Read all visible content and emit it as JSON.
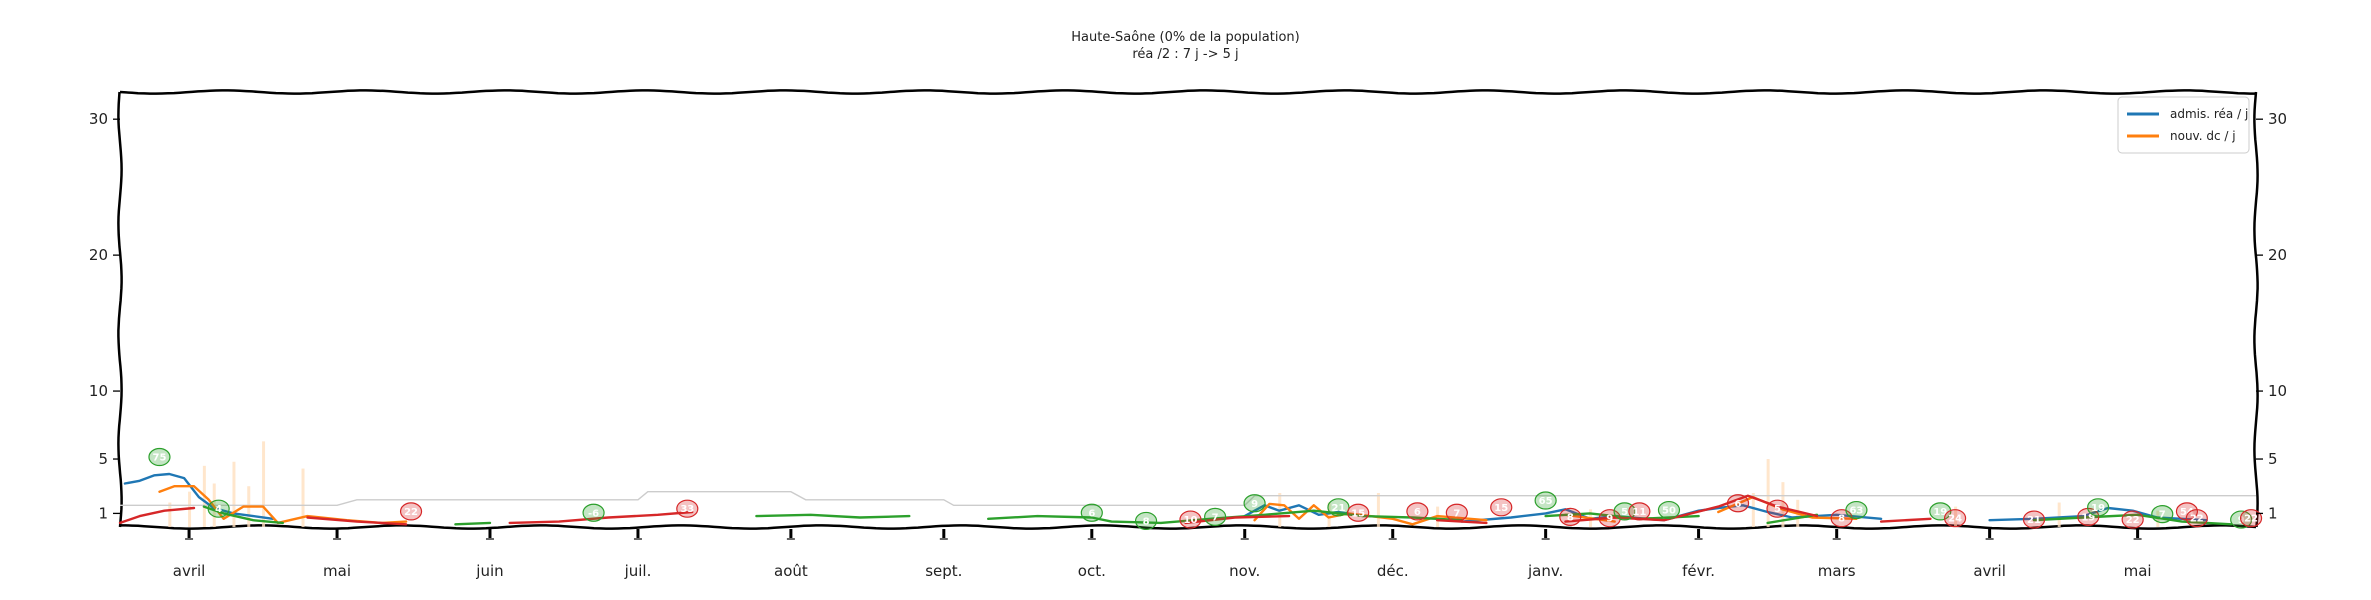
{
  "chart_data": {
    "type": "line",
    "title": "Haute-Saône (0% de la population)",
    "subtitle": "réa /2 : 7 j -> 5 j",
    "xlabel": "",
    "ylabel": "",
    "ylim": [
      0,
      32
    ],
    "y_ticks": [
      1,
      5,
      10,
      20,
      30
    ],
    "x_range": [
      "2020-03-18",
      "2021-05-25"
    ],
    "x_ticks": [
      {
        "date": "2020-04-01",
        "label": "avril"
      },
      {
        "date": "2020-05-01",
        "label": "mai"
      },
      {
        "date": "2020-06-01",
        "label": "juin"
      },
      {
        "date": "2020-07-01",
        "label": "juil."
      },
      {
        "date": "2020-08-01",
        "label": "août"
      },
      {
        "date": "2020-09-01",
        "label": "sept."
      },
      {
        "date": "2020-10-01",
        "label": "oct."
      },
      {
        "date": "2020-11-01",
        "label": "nov."
      },
      {
        "date": "2020-12-01",
        "label": "déc."
      },
      {
        "date": "2021-01-01",
        "label": "janv."
      },
      {
        "date": "2021-02-01",
        "label": "févr."
      },
      {
        "date": "2021-03-01",
        "label": "mars"
      },
      {
        "date": "2021-04-01",
        "label": "avril"
      },
      {
        "date": "2021-05-01",
        "label": "mai"
      }
    ],
    "legend": {
      "placement": "top-right"
    },
    "grid": false,
    "series": [
      {
        "name": "admis. réa / j",
        "color": "#1f77b4",
        "points": [
          [
            "2020-03-19",
            3.2
          ],
          [
            "2020-03-22",
            3.4
          ],
          [
            "2020-03-25",
            3.8
          ],
          [
            "2020-03-28",
            3.9
          ],
          [
            "2020-03-31",
            3.6
          ],
          [
            "2020-04-03",
            2.2
          ],
          [
            "2020-04-06",
            1.4
          ],
          [
            "2020-04-10",
            1.0
          ],
          [
            "2020-04-14",
            0.8
          ],
          [
            "2020-04-18",
            0.6
          ],
          [
            "2020-11-01",
            0.8
          ],
          [
            "2020-11-05",
            1.6
          ],
          [
            "2020-11-08",
            1.2
          ],
          [
            "2020-11-12",
            1.6
          ],
          [
            "2020-11-16",
            0.9
          ],
          [
            "2020-11-20",
            1.1
          ],
          [
            "2020-11-25",
            0.8
          ],
          [
            "2020-12-15",
            0.4
          ],
          [
            "2020-12-25",
            0.7
          ],
          [
            "2021-01-01",
            1.0
          ],
          [
            "2021-01-05",
            1.3
          ],
          [
            "2021-01-10",
            0.6
          ],
          [
            "2021-01-15",
            0.8
          ],
          [
            "2021-01-25",
            0.5
          ],
          [
            "2021-02-01",
            1.2
          ],
          [
            "2021-02-05",
            1.4
          ],
          [
            "2021-02-10",
            1.6
          ],
          [
            "2021-02-15",
            1.1
          ],
          [
            "2021-02-20",
            0.7
          ],
          [
            "2021-03-01",
            0.9
          ],
          [
            "2021-03-10",
            0.6
          ],
          [
            "2021-04-01",
            0.5
          ],
          [
            "2021-04-10",
            0.6
          ],
          [
            "2021-04-20",
            0.8
          ],
          [
            "2021-04-25",
            1.4
          ],
          [
            "2021-04-30",
            1.2
          ],
          [
            "2021-05-05",
            0.7
          ],
          [
            "2021-05-15",
            0.5
          ]
        ]
      },
      {
        "name": "nouv. dc / j",
        "color": "#ff7f0e",
        "points": [
          [
            "2020-03-26",
            2.6
          ],
          [
            "2020-03-29",
            3.0
          ],
          [
            "2020-04-02",
            3.0
          ],
          [
            "2020-04-05",
            2.0
          ],
          [
            "2020-04-08",
            0.6
          ],
          [
            "2020-04-12",
            1.5
          ],
          [
            "2020-04-16",
            1.5
          ],
          [
            "2020-04-19",
            0.3
          ],
          [
            "2020-04-25",
            0.8
          ],
          [
            "2020-05-03",
            0.5
          ],
          [
            "2020-05-10",
            0.3
          ],
          [
            "2020-05-15",
            0.4
          ],
          [
            "2020-11-03",
            0.5
          ],
          [
            "2020-11-06",
            1.7
          ],
          [
            "2020-11-09",
            1.6
          ],
          [
            "2020-11-12",
            0.6
          ],
          [
            "2020-11-15",
            1.6
          ],
          [
            "2020-11-18",
            0.7
          ],
          [
            "2020-11-22",
            1.0
          ],
          [
            "2020-12-01",
            0.6
          ],
          [
            "2020-12-05",
            0.2
          ],
          [
            "2020-12-10",
            0.8
          ],
          [
            "2020-12-20",
            0.5
          ],
          [
            "2021-01-05",
            0.9
          ],
          [
            "2021-01-15",
            0.4
          ],
          [
            "2021-02-05",
            1.1
          ],
          [
            "2021-02-12",
            2.2
          ],
          [
            "2021-02-18",
            1.3
          ],
          [
            "2021-02-24",
            0.7
          ],
          [
            "2021-03-05",
            0.6
          ],
          [
            "2021-03-20",
            0.8
          ],
          [
            "2021-04-05",
            0.5
          ],
          [
            "2021-04-25",
            0.7
          ],
          [
            "2021-05-10",
            0.5
          ]
        ]
      },
      {
        "color": "#2ca02c",
        "points": [
          [
            "2020-04-04",
            1.5
          ],
          [
            "2020-04-08",
            1.0
          ],
          [
            "2020-04-14",
            0.5
          ],
          [
            "2020-04-20",
            0.3
          ],
          [
            "2020-05-10",
            0.3
          ],
          [
            "2020-05-25",
            0.2
          ],
          [
            "2020-06-01",
            0.3
          ],
          [
            "2020-07-25",
            0.8
          ],
          [
            "2020-08-05",
            0.9
          ],
          [
            "2020-08-15",
            0.7
          ],
          [
            "2020-08-25",
            0.8
          ],
          [
            "2020-09-10",
            0.6
          ],
          [
            "2020-09-20",
            0.8
          ],
          [
            "2020-10-01",
            0.7
          ],
          [
            "2020-10-05",
            0.4
          ],
          [
            "2020-10-15",
            0.3
          ],
          [
            "2020-10-25",
            0.6
          ],
          [
            "2020-11-05",
            0.9
          ],
          [
            "2020-11-15",
            1.2
          ],
          [
            "2020-11-25",
            0.8
          ],
          [
            "2020-12-05",
            0.7
          ],
          [
            "2020-12-15",
            0.5
          ],
          [
            "2021-01-01",
            0.8
          ],
          [
            "2021-01-10",
            1.0
          ],
          [
            "2021-01-20",
            0.6
          ],
          [
            "2021-02-01",
            0.8
          ],
          [
            "2021-02-15",
            0.3
          ],
          [
            "2021-02-25",
            0.9
          ],
          [
            "2021-03-10",
            1.1
          ],
          [
            "2021-03-25",
            0.7
          ],
          [
            "2021-04-10",
            0.5
          ],
          [
            "2021-04-20",
            0.7
          ],
          [
            "2021-05-01",
            0.9
          ],
          [
            "2021-05-10",
            0.4
          ],
          [
            "2021-05-20",
            0.2
          ]
        ]
      },
      {
        "color": "#d62728",
        "points": [
          [
            "2020-03-18",
            0.3
          ],
          [
            "2020-03-22",
            0.8
          ],
          [
            "2020-03-27",
            1.2
          ],
          [
            "2020-04-02",
            1.4
          ],
          [
            "2020-04-25",
            0.7
          ],
          [
            "2020-05-05",
            0.4
          ],
          [
            "2020-05-15",
            0.2
          ],
          [
            "2020-06-05",
            0.3
          ],
          [
            "2020-06-15",
            0.4
          ],
          [
            "2020-06-25",
            0.7
          ],
          [
            "2020-07-05",
            0.9
          ],
          [
            "2020-07-12",
            1.1
          ],
          [
            "2020-10-20",
            0.3
          ],
          [
            "2020-10-30",
            0.7
          ],
          [
            "2020-11-10",
            0.8
          ],
          [
            "2020-11-25",
            0.6
          ],
          [
            "2020-12-10",
            0.5
          ],
          [
            "2020-12-20",
            0.3
          ],
          [
            "2021-01-05",
            0.4
          ],
          [
            "2021-01-15",
            0.7
          ],
          [
            "2021-01-25",
            0.5
          ],
          [
            "2021-02-05",
            1.5
          ],
          [
            "2021-02-11",
            2.3
          ],
          [
            "2021-02-17",
            1.5
          ],
          [
            "2021-02-25",
            0.8
          ],
          [
            "2021-03-10",
            0.4
          ],
          [
            "2021-03-20",
            0.6
          ],
          [
            "2021-04-05",
            0.2
          ],
          [
            "2021-04-20",
            0.5
          ],
          [
            "2021-05-05",
            0.3
          ],
          [
            "2021-05-20",
            0.2
          ]
        ]
      }
    ],
    "annotations": [
      {
        "date": "2020-03-26",
        "y": 5.0,
        "text": "75",
        "color": "#2ca02c"
      },
      {
        "date": "2020-04-07",
        "y": 1.2,
        "text": "4",
        "color": "#2ca02c"
      },
      {
        "date": "2020-05-16",
        "y": 1.0,
        "text": "22",
        "color": "#d62728"
      },
      {
        "date": "2020-06-22",
        "y": 0.9,
        "text": "-6",
        "color": "#2ca02c"
      },
      {
        "date": "2020-07-11",
        "y": 1.2,
        "text": "33",
        "color": "#d62728"
      },
      {
        "date": "2020-10-01",
        "y": 0.9,
        "text": "6",
        "color": "#2ca02c"
      },
      {
        "date": "2020-10-12",
        "y": 0.3,
        "text": "8",
        "color": "#2ca02c"
      },
      {
        "date": "2020-10-21",
        "y": 0.4,
        "text": "10",
        "color": "#d62728"
      },
      {
        "date": "2020-10-26",
        "y": 0.6,
        "text": "7",
        "color": "#2ca02c"
      },
      {
        "date": "2020-11-03",
        "y": 1.6,
        "text": "9",
        "color": "#2ca02c"
      },
      {
        "date": "2020-11-20",
        "y": 1.3,
        "text": "21",
        "color": "#2ca02c"
      },
      {
        "date": "2020-11-24",
        "y": 0.9,
        "text": "15",
        "color": "#d62728"
      },
      {
        "date": "2020-12-06",
        "y": 1.0,
        "text": "6",
        "color": "#d62728"
      },
      {
        "date": "2020-12-14",
        "y": 0.9,
        "text": "7",
        "color": "#d62728"
      },
      {
        "date": "2020-12-23",
        "y": 1.3,
        "text": "15",
        "color": "#d62728"
      },
      {
        "date": "2021-01-01",
        "y": 1.8,
        "text": "65",
        "color": "#2ca02c"
      },
      {
        "date": "2021-01-06",
        "y": 0.6,
        "text": "8",
        "color": "#d62728"
      },
      {
        "date": "2021-01-14",
        "y": 0.5,
        "text": "9",
        "color": "#d62728"
      },
      {
        "date": "2021-01-17",
        "y": 1.0,
        "text": "5",
        "color": "#2ca02c"
      },
      {
        "date": "2021-01-20",
        "y": 1.0,
        "text": "11",
        "color": "#d62728"
      },
      {
        "date": "2021-01-26",
        "y": 1.1,
        "text": "50",
        "color": "#2ca02c"
      },
      {
        "date": "2021-02-09",
        "y": 1.6,
        "text": "6",
        "color": "#d62728"
      },
      {
        "date": "2021-02-17",
        "y": 1.2,
        "text": "5",
        "color": "#d62728"
      },
      {
        "date": "2021-03-02",
        "y": 0.5,
        "text": "8",
        "color": "#d62728"
      },
      {
        "date": "2021-03-05",
        "y": 1.1,
        "text": "63",
        "color": "#2ca02c"
      },
      {
        "date": "2021-03-22",
        "y": 1.0,
        "text": "19",
        "color": "#2ca02c"
      },
      {
        "date": "2021-03-25",
        "y": 0.5,
        "text": "24",
        "color": "#d62728"
      },
      {
        "date": "2021-04-10",
        "y": 0.4,
        "text": "21",
        "color": "#d62728"
      },
      {
        "date": "2021-04-21",
        "y": 0.6,
        "text": "19",
        "color": "#d62728"
      },
      {
        "date": "2021-04-23",
        "y": 1.3,
        "text": "19",
        "color": "#2ca02c"
      },
      {
        "date": "2021-04-30",
        "y": 0.4,
        "text": "22",
        "color": "#d62728"
      },
      {
        "date": "2021-05-06",
        "y": 0.8,
        "text": "7",
        "color": "#2ca02c"
      },
      {
        "date": "2021-05-11",
        "y": 1.0,
        "text": "54",
        "color": "#d62728"
      },
      {
        "date": "2021-05-13",
        "y": 0.5,
        "text": "22",
        "color": "#d62728"
      },
      {
        "date": "2021-05-22",
        "y": 0.4,
        "text": "9",
        "color": "#2ca02c"
      },
      {
        "date": "2021-05-24",
        "y": 0.5,
        "text": "22",
        "color": "#d62728"
      }
    ]
  }
}
